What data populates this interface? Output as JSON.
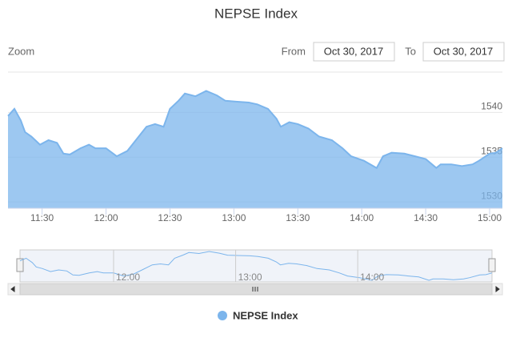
{
  "chart_data": {
    "type": "area",
    "title": "NEPSE Index",
    "zoom_label": "Zoom",
    "from_label": "From",
    "from_date": "Oct 30, 2017",
    "to_label": "To",
    "to_date": "Oct 30, 2017",
    "x": [
      "11:14",
      "11:17",
      "11:20",
      "11:22",
      "11:25",
      "11:29",
      "11:33",
      "11:37",
      "11:40",
      "11:43",
      "11:48",
      "11:52",
      "11:55",
      "12:00",
      "12:05",
      "12:10",
      "12:14",
      "12:19",
      "12:23",
      "12:27",
      "12:30",
      "12:34",
      "12:37",
      "12:42",
      "12:47",
      "12:52",
      "12:56",
      "13:01",
      "13:07",
      "13:11",
      "13:16",
      "13:20",
      "13:22",
      "13:26",
      "13:30",
      "13:35",
      "13:40",
      "13:46",
      "13:51",
      "13:55",
      "14:01",
      "14:07",
      "14:10",
      "14:14",
      "14:20",
      "14:25",
      "14:30",
      "14:35",
      "14:37",
      "14:42",
      "14:47",
      "14:52",
      "14:55",
      "15:00",
      "15:03",
      "15:06"
    ],
    "series": [
      {
        "name": "NEPSE Index",
        "color": "#7cb5ec",
        "values": [
          1539.6,
          1540.4,
          1539.1,
          1537.8,
          1537.3,
          1536.4,
          1536.9,
          1536.6,
          1535.4,
          1535.3,
          1536.0,
          1536.4,
          1536.0,
          1536.0,
          1535.1,
          1535.7,
          1536.9,
          1538.4,
          1538.7,
          1538.4,
          1540.4,
          1541.3,
          1542.1,
          1541.8,
          1542.4,
          1541.9,
          1541.3,
          1541.2,
          1541.1,
          1540.9,
          1540.4,
          1539.3,
          1538.4,
          1538.9,
          1538.7,
          1538.2,
          1537.3,
          1536.9,
          1536.0,
          1535.1,
          1534.6,
          1533.8,
          1535.1,
          1535.5,
          1535.4,
          1535.1,
          1534.8,
          1533.8,
          1534.2,
          1534.2,
          1534.0,
          1534.2,
          1534.6,
          1535.4,
          1535.5,
          1536.0
        ]
      }
    ],
    "xlim": [
      "11:14",
      "15:06"
    ],
    "xticks": [
      "11:30",
      "12:00",
      "12:30",
      "13:00",
      "13:30",
      "14:00",
      "14:30",
      "15:00"
    ],
    "ylim": [
      1529.3,
      1544.5
    ],
    "yticks": [
      1530,
      1535,
      1540
    ],
    "grid": true,
    "navigator": {
      "xticks": [
        "12:00",
        "13:00",
        "14:00"
      ]
    }
  }
}
